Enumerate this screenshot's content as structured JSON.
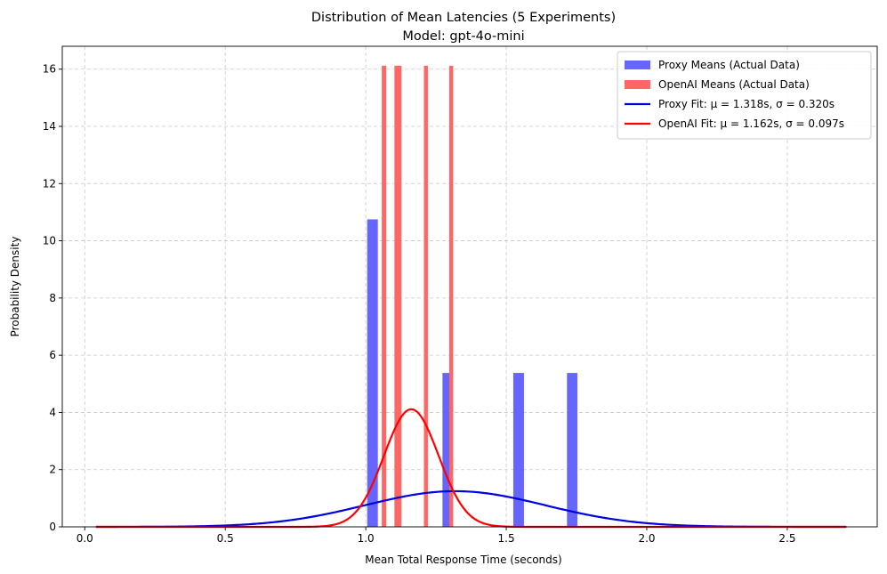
{
  "chart_data": {
    "type": "bar",
    "title": "Distribution of Mean Latencies (5 Experiments)",
    "subtitle": "Model: gpt-4o-mini",
    "xlabel": "Mean Total Response Time (seconds)",
    "ylabel": "Probability Density",
    "xlim": [
      -0.08,
      2.82
    ],
    "ylim": [
      0,
      16.8
    ],
    "xticks": [
      0.0,
      0.5,
      1.0,
      1.5,
      2.0,
      2.5
    ],
    "xtick_labels": [
      "0.0",
      "0.5",
      "1.0",
      "1.5",
      "2.0",
      "2.5"
    ],
    "yticks": [
      0,
      2,
      4,
      6,
      8,
      10,
      12,
      14,
      16
    ],
    "ytick_labels": [
      "0",
      "2",
      "4",
      "6",
      "8",
      "10",
      "12",
      "14",
      "16"
    ],
    "grid": true,
    "legend_position": "top-right",
    "histograms": [
      {
        "name": "Proxy Means (Actual Data)",
        "color": "#6666ff",
        "bars": [
          {
            "x0": 1.005,
            "x1": 1.043,
            "density": 10.75
          },
          {
            "x0": 1.273,
            "x1": 1.308,
            "density": 5.38
          },
          {
            "x0": 1.525,
            "x1": 1.563,
            "density": 5.38
          },
          {
            "x0": 1.716,
            "x1": 1.753,
            "density": 5.38
          }
        ]
      },
      {
        "name": "OpenAI Means (Actual Data)",
        "color": "#ff6666",
        "bars": [
          {
            "x0": 1.057,
            "x1": 1.073,
            "density": 16.12
          },
          {
            "x0": 1.102,
            "x1": 1.127,
            "density": 16.12
          },
          {
            "x0": 1.207,
            "x1": 1.221,
            "density": 16.12
          },
          {
            "x0": 1.297,
            "x1": 1.311,
            "density": 16.12
          }
        ]
      }
    ],
    "fits": [
      {
        "name": "Proxy Fit: μ = 1.318s, σ = 0.320s",
        "color": "#0000dd",
        "mu": 1.318,
        "sigma": 0.32
      },
      {
        "name": "OpenAI Fit: μ = 1.162s, σ = 0.097s",
        "color": "#ff0000",
        "mu": 1.162,
        "sigma": 0.097
      }
    ],
    "fit_range": [
      0.04,
      2.71
    ]
  }
}
